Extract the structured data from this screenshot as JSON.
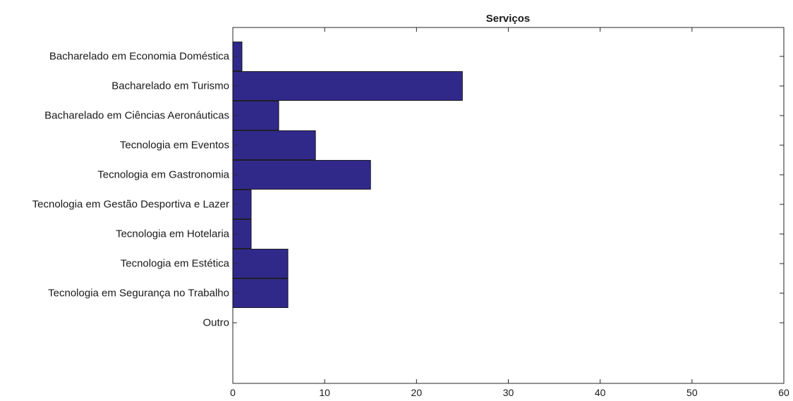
{
  "chart_data": {
    "type": "bar",
    "orientation": "horizontal",
    "title": "Serviços",
    "xlabel": "",
    "ylabel": "",
    "xlim": [
      0,
      60
    ],
    "x_ticks": [
      0,
      10,
      20,
      30,
      40,
      50,
      60
    ],
    "grid": false,
    "legend": "none",
    "bar_color": "#31298a",
    "categories": [
      "Bacharelado em Economia Doméstica",
      "Bacharelado em Turismo",
      "Bacharelado em Ciências Aeronáuticas",
      "Tecnologia em Eventos",
      "Tecnologia em Gastronomia",
      "Tecnologia em Gestão Desportiva e Lazer",
      "Tecnologia em Hotelaria",
      "Tecnologia em Estética",
      "Tecnologia em Segurança no Trabalho",
      "Outro"
    ],
    "values": [
      1,
      25,
      5,
      9,
      15,
      2,
      2,
      6,
      6,
      0
    ]
  }
}
